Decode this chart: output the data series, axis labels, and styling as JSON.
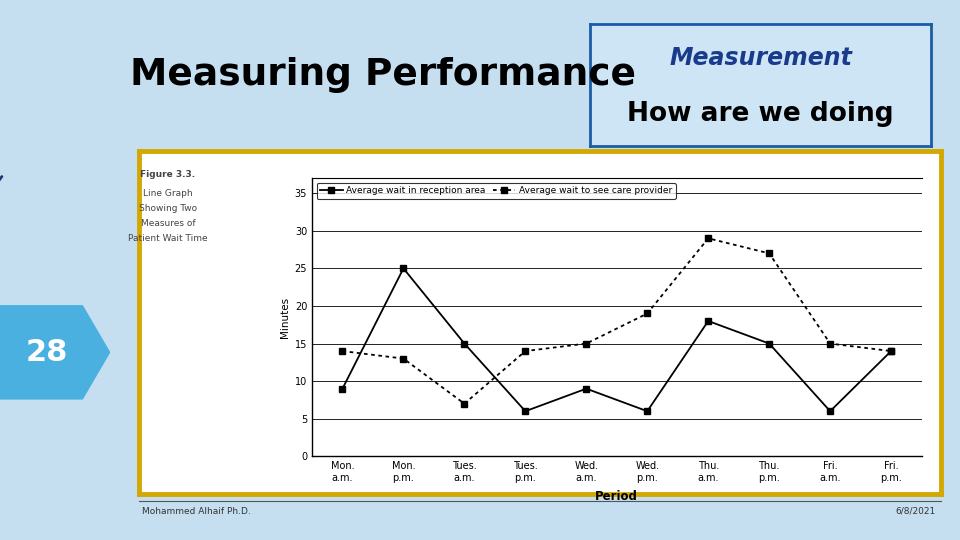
{
  "title": "Measuring Performance",
  "box_title_line1": "Measurement",
  "box_title_line2": "How are we doing",
  "slide_bg": "#c5dff0",
  "chart_bg": "#ffffff",
  "box_bg": "#cde5f5",
  "box_border": "#1a5ca8",
  "gold_border": "#d4a800",
  "figure_caption_line1": "Figure 3.3.",
  "figure_caption_line2": "Line Graph",
  "figure_caption_line3": "Showing Two",
  "figure_caption_line4": "Measures of",
  "figure_caption_line5": "Patient Wait Time",
  "ylabel": "Minutes",
  "xlabel": "Period",
  "period_labels": [
    "Mon.\na.m.",
    "Mon.\np.m.",
    "Tues.\na.m.",
    "Tues.\np.m.",
    "Wed.\na.m.",
    "Wed.\np.m.",
    "Thu.\na.m.",
    "Thu.\np.m.",
    "Fri.\na.m.",
    "Fri.\np.m."
  ],
  "series1_label": "Average wait in reception area",
  "series2_label": "Average wait to see care provider",
  "series1_values": [
    9,
    25,
    15,
    6,
    9,
    6,
    18,
    15,
    6,
    14
  ],
  "series2_values": [
    14,
    13,
    7,
    14,
    15,
    19,
    29,
    27,
    15,
    14
  ],
  "ylim": [
    0,
    37
  ],
  "yticks": [
    0,
    5,
    10,
    15,
    20,
    25,
    30,
    35
  ],
  "page_number": "28",
  "footer_left": "Mohammed Alhaif Ph.D.",
  "footer_right": "6/8/2021",
  "title_color": "#000000",
  "box_title_color1": "#1a3a8c",
  "box_title_color2": "#000000",
  "page_num_bg": "#4ab0e0",
  "page_num_color": "#ffffff",
  "dark_blue": "#1a3a6e",
  "mid_blue": "#2060a0",
  "light_blue_line": "#4080c0"
}
